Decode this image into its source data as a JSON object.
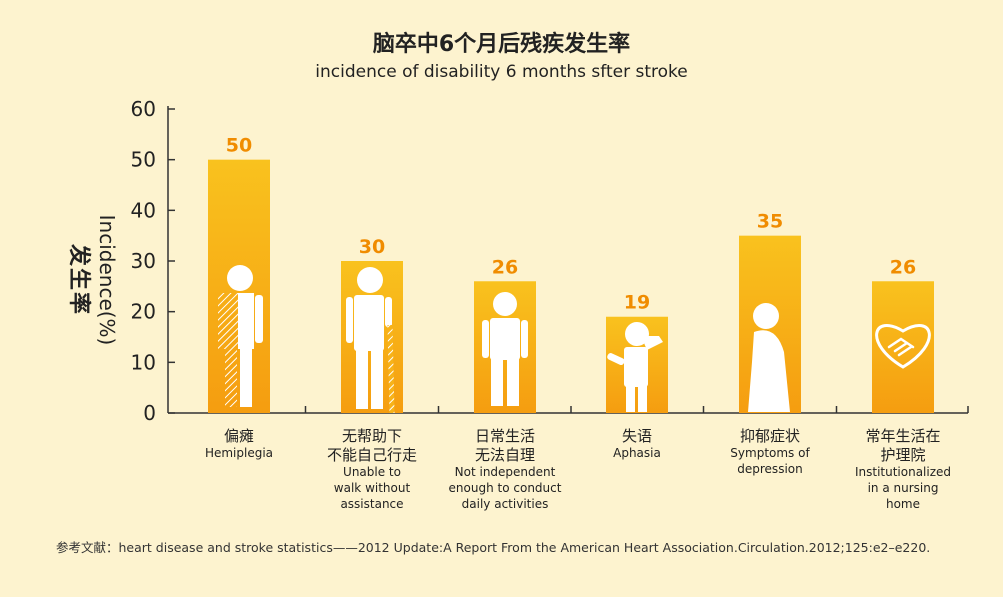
{
  "title_cn": "脑卒中6个月后残疾发生率",
  "title_en": "incidence of disability 6 months sfter stroke",
  "source": "参考文献：heart disease and stroke statistics——2012 Update:A Report From the American Heart Association.Circulation.2012;125:e2–e220.",
  "colors": {
    "bar_top": "#f9c21e",
    "bar_bottom": "#f59d10",
    "label": "#f08c00",
    "icon": "#ffffff",
    "background": "#fdf3cf"
  },
  "chart_data": {
    "type": "bar",
    "title": "脑卒中6个月后残疾发生率",
    "subtitle": "incidence of disability 6 months sfter stroke",
    "ylabel": "Incidence(%)",
    "ylabel_cn": "发生率",
    "ylim": [
      0,
      60
    ],
    "yticks": [
      0,
      10,
      20,
      30,
      40,
      50,
      60
    ],
    "grid": false,
    "categories": [
      {
        "cn": [
          "偏瘫"
        ],
        "en": [
          "Hemiplegia"
        ],
        "icon": "hemiplegia-person-icon"
      },
      {
        "cn": [
          "无帮助下",
          "不能自己行走"
        ],
        "en": [
          "Unable to",
          "walk without",
          "assistance"
        ],
        "icon": "walking-cane-person-icon"
      },
      {
        "cn": [
          "日常生活",
          "无法自理"
        ],
        "en": [
          "Not independent",
          "enough to conduct",
          "daily activities"
        ],
        "icon": "standing-person-icon"
      },
      {
        "cn": [
          "失语"
        ],
        "en": [
          "Aphasia"
        ],
        "icon": "aphasia-person-icon"
      },
      {
        "cn": [
          "抑郁症状"
        ],
        "en": [
          "Symptoms of",
          "depression"
        ],
        "icon": "depressed-person-icon"
      },
      {
        "cn": [
          "常年生活在",
          "护理院"
        ],
        "en": [
          "Institutionalized",
          "in a nursing",
          "home"
        ],
        "icon": "heart-handshake-icon"
      }
    ],
    "values": [
      50,
      30,
      26,
      19,
      35,
      26
    ]
  }
}
